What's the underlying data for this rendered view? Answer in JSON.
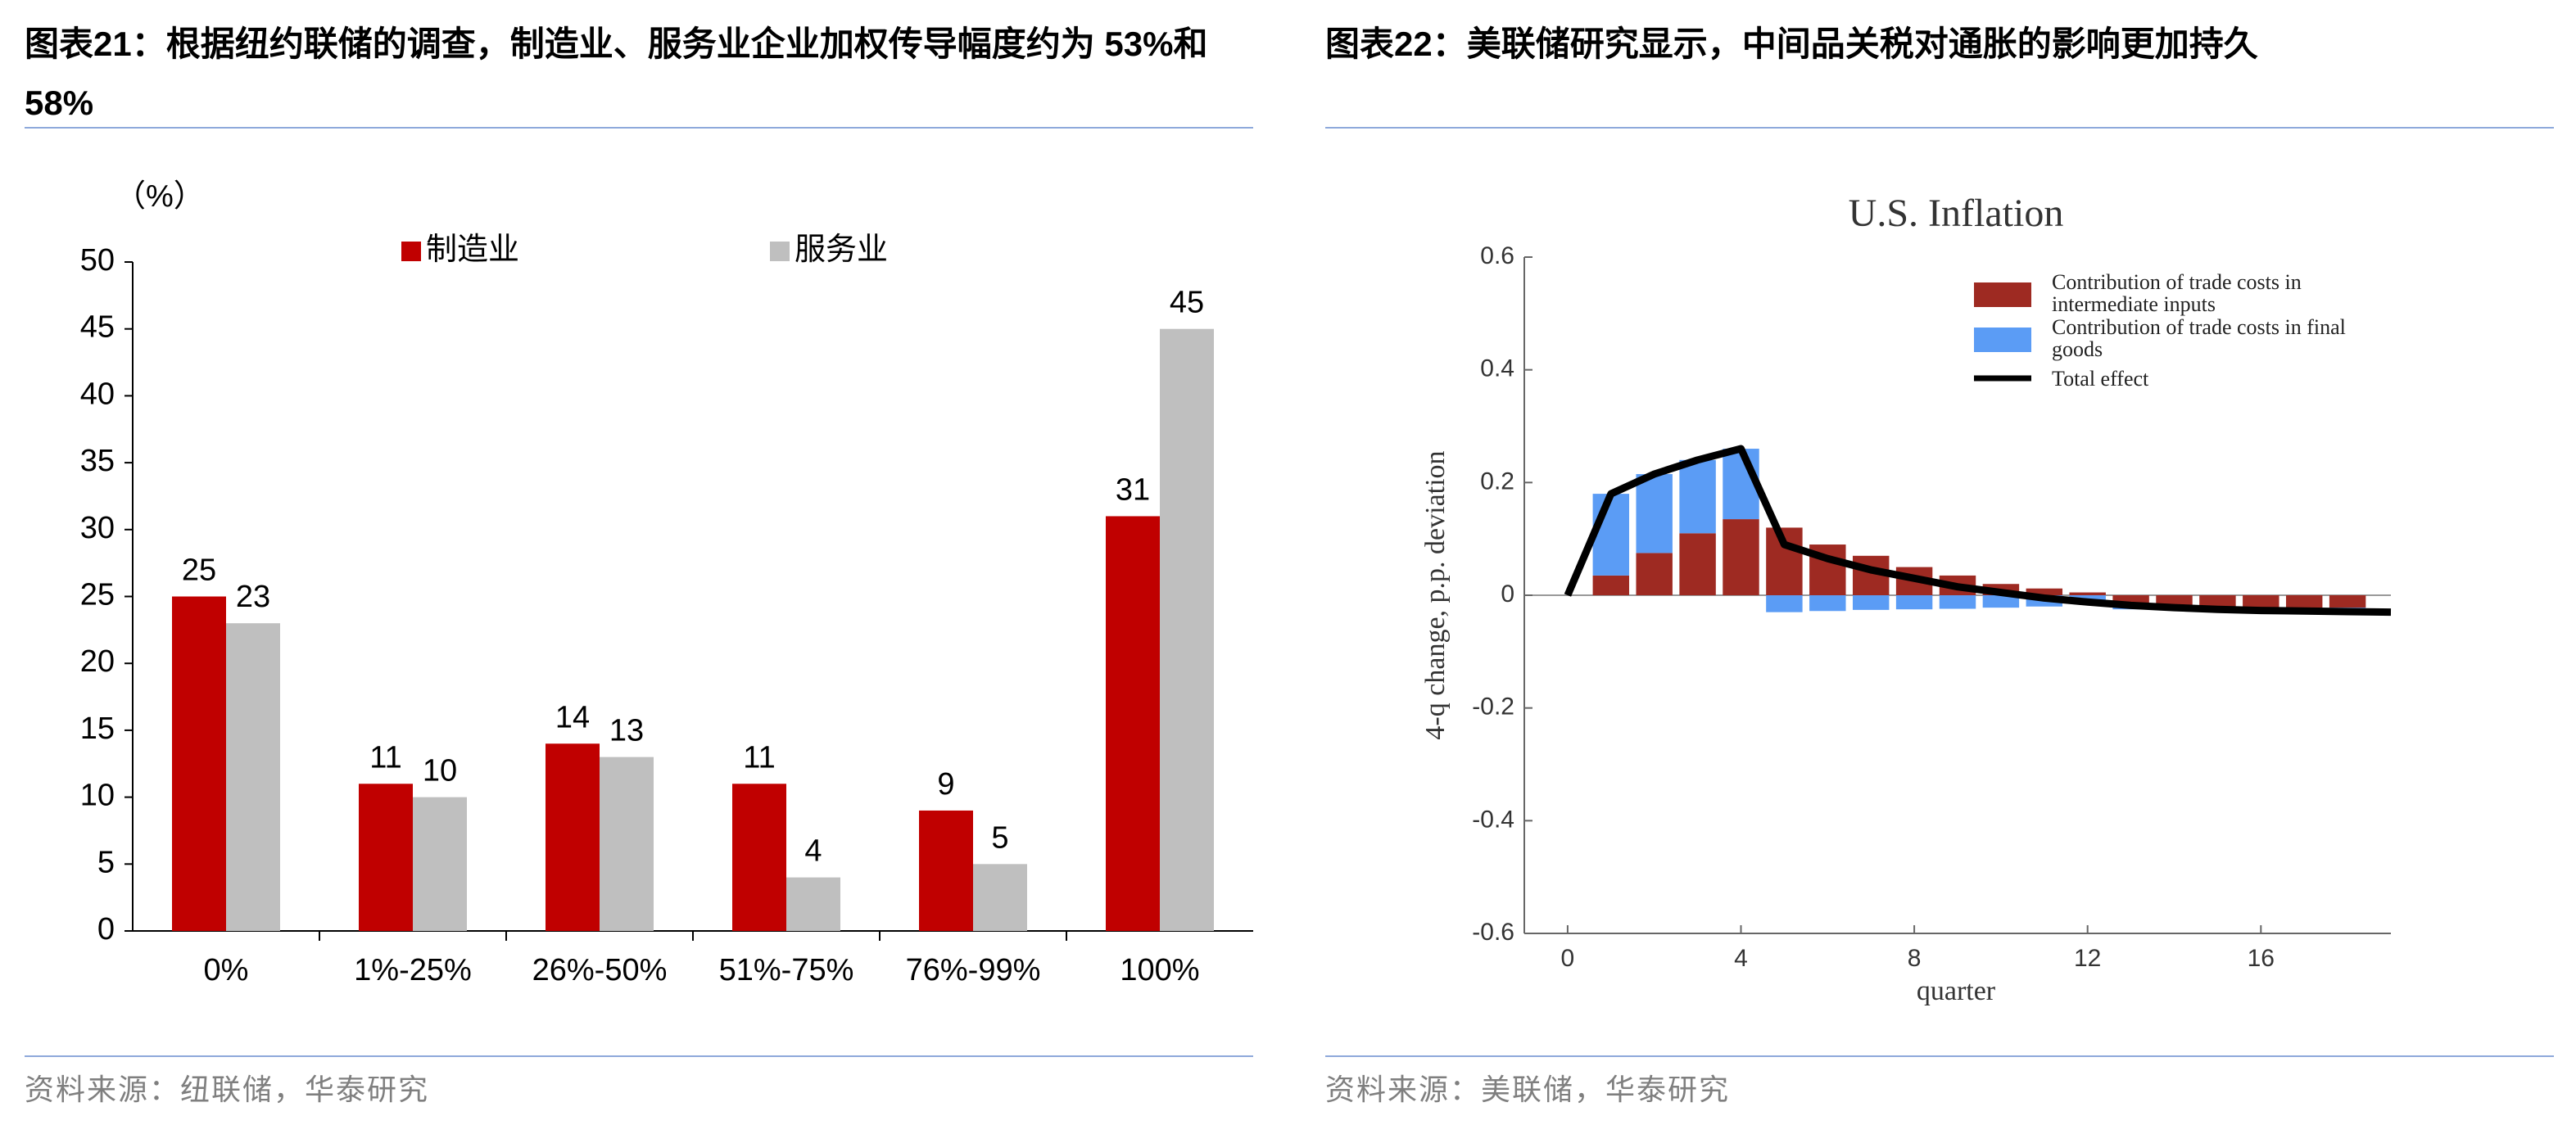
{
  "chart_data": [
    {
      "type": "bar",
      "title": "图表21：根据纽约联储的调查，制造业、服务业企业加权传导幅度约为 53%和 58%",
      "y_unit": "（%）",
      "categories": [
        "0%",
        "1%-25%",
        "26%-50%",
        "51%-75%",
        "76%-99%",
        "100%"
      ],
      "series": [
        {
          "name": "制造业",
          "color": "#C00000",
          "values": [
            25,
            11,
            14,
            11,
            9,
            31
          ]
        },
        {
          "name": "服务业",
          "color": "#BFBFBF",
          "values": [
            23,
            10,
            13,
            4,
            5,
            45
          ]
        }
      ],
      "ylim": [
        0,
        50
      ],
      "yticks": [
        0,
        5,
        10,
        15,
        20,
        25,
        30,
        35,
        40,
        45,
        50
      ],
      "source": "资料来源：纽联储，华泰研究"
    },
    {
      "type": "combo",
      "title": "图表22：美联储研究显示，中间品关税对通胀的影响更加持久",
      "plot_title": "U.S. Inflation",
      "y_label": "4-q change, p.p. deviation",
      "x_label": "quarter",
      "series": [
        {
          "name": "Contribution of trade costs in intermediate inputs",
          "color": "#9E2A22",
          "type": "bar",
          "x": [
            1,
            2,
            3,
            4,
            5,
            6,
            7,
            8,
            9,
            10,
            11,
            12,
            13,
            14,
            15,
            16,
            17,
            18
          ],
          "values": [
            0.035,
            0.075,
            0.11,
            0.135,
            0.12,
            0.09,
            0.07,
            0.05,
            0.035,
            0.02,
            0.012,
            0.005,
            -0.015,
            -0.018,
            -0.02,
            -0.022,
            -0.022,
            -0.022
          ]
        },
        {
          "name": "Contribution of trade costs in final goods",
          "color": "#5B9CF5",
          "type": "bar",
          "x": [
            1,
            2,
            3,
            4,
            5,
            6,
            7,
            8,
            9,
            10,
            11,
            12,
            13,
            14,
            15,
            16,
            17,
            18
          ],
          "values": [
            0.145,
            0.14,
            0.13,
            0.125,
            -0.03,
            -0.028,
            -0.026,
            -0.025,
            -0.024,
            -0.022,
            -0.02,
            -0.015,
            -0.01,
            -0.008,
            -0.005,
            -0.005,
            -0.005,
            -0.005
          ]
        },
        {
          "name": "Total effect",
          "color": "#000000",
          "type": "line",
          "x": [
            0,
            1,
            2,
            3,
            4,
            5,
            6,
            7,
            8,
            9,
            10,
            11,
            12,
            13,
            14,
            15,
            16,
            17,
            18,
            19
          ],
          "values": [
            0,
            0.18,
            0.215,
            0.24,
            0.26,
            0.09,
            0.065,
            0.045,
            0.03,
            0.015,
            0.005,
            -0.005,
            -0.012,
            -0.018,
            -0.022,
            -0.025,
            -0.027,
            -0.028,
            -0.029,
            -0.03
          ]
        }
      ],
      "xlim": [
        -1,
        19
      ],
      "xticks": [
        0,
        4,
        8,
        12,
        16
      ],
      "ylim": [
        -0.6,
        0.6
      ],
      "yticks": [
        -0.6,
        -0.4,
        -0.2,
        0,
        0.2,
        0.4,
        0.6
      ],
      "source": "资料来源：美联储，华泰研究"
    }
  ]
}
